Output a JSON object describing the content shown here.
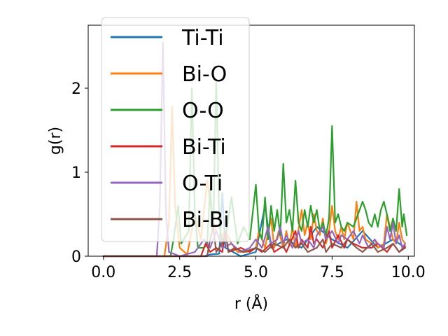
{
  "chart_data": {
    "type": "line",
    "title": "",
    "xlabel": "r (Å)",
    "ylabel": "g(r)",
    "xlim": [
      -0.5,
      10.2
    ],
    "ylim": [
      0,
      2.75
    ],
    "xticks": [
      0.0,
      2.5,
      5.0,
      7.5,
      10.0
    ],
    "xtick_labels": [
      "0.0",
      "2.5",
      "5.0",
      "7.5",
      "10.0"
    ],
    "yticks": [
      0,
      1,
      2
    ],
    "ytick_labels": [
      "0",
      "1",
      "2"
    ],
    "grid": false,
    "legend_position": "upper-left",
    "series": [
      {
        "name": "Ti-Ti",
        "color": "#1f77b4",
        "points": [
          [
            0,
            0
          ],
          [
            3.0,
            0
          ],
          [
            3.3,
            0
          ],
          [
            3.5,
            0.02
          ],
          [
            3.8,
            0.03
          ],
          [
            3.9,
            0.75
          ],
          [
            4.0,
            0.1
          ],
          [
            4.5,
            0
          ],
          [
            5.0,
            0.05
          ],
          [
            5.3,
            0.6
          ],
          [
            5.5,
            0.1
          ],
          [
            6.0,
            0.2
          ],
          [
            6.5,
            0.1
          ],
          [
            7.0,
            0.35
          ],
          [
            7.5,
            0.2
          ],
          [
            8.0,
            0.1
          ],
          [
            8.5,
            0.3
          ],
          [
            9.0,
            0.1
          ],
          [
            9.5,
            0.2
          ],
          [
            9.9,
            0.1
          ]
        ]
      },
      {
        "name": "Bi-O",
        "color": "#ff7f0e",
        "points": [
          [
            0,
            0
          ],
          [
            2.0,
            0
          ],
          [
            2.15,
            0.4
          ],
          [
            2.25,
            1.78
          ],
          [
            2.35,
            0.6
          ],
          [
            2.5,
            0.1
          ],
          [
            2.75,
            0.02
          ],
          [
            3.0,
            0.5
          ],
          [
            3.2,
            0.2
          ],
          [
            3.4,
            0.9
          ],
          [
            3.6,
            0.4
          ],
          [
            3.8,
            0.2
          ],
          [
            4.0,
            0.3
          ],
          [
            4.2,
            0.15
          ],
          [
            4.4,
            0.05
          ],
          [
            4.7,
            0.05
          ],
          [
            5.0,
            0.1
          ],
          [
            5.1,
            0.3
          ],
          [
            5.3,
            0.1
          ],
          [
            5.5,
            0.45
          ],
          [
            5.6,
            0.1
          ],
          [
            5.75,
            0.3
          ],
          [
            5.9,
            0.1
          ],
          [
            6.0,
            0.3
          ],
          [
            6.1,
            0.12
          ],
          [
            6.2,
            0.35
          ],
          [
            6.3,
            0.1
          ],
          [
            6.5,
            0.55
          ],
          [
            6.6,
            0.25
          ],
          [
            6.7,
            0.4
          ],
          [
            6.8,
            0.2
          ],
          [
            6.9,
            0.5
          ],
          [
            7.0,
            0.3
          ],
          [
            7.1,
            0.25
          ],
          [
            7.2,
            0.45
          ],
          [
            7.3,
            0.15
          ],
          [
            7.4,
            0.3
          ],
          [
            7.5,
            0.6
          ],
          [
            7.6,
            0.3
          ],
          [
            7.7,
            0.2
          ],
          [
            7.8,
            0.35
          ],
          [
            7.9,
            0.2
          ],
          [
            8.0,
            0.4
          ],
          [
            8.1,
            0.3
          ],
          [
            8.2,
            0.2
          ],
          [
            8.3,
            0.65
          ],
          [
            8.4,
            0.3
          ],
          [
            8.5,
            0.35
          ],
          [
            8.6,
            0.2
          ],
          [
            8.8,
            0.15
          ],
          [
            8.9,
            0.2
          ],
          [
            9.0,
            0.1
          ],
          [
            9.2,
            0.15
          ],
          [
            9.3,
            0.5
          ],
          [
            9.4,
            0.35
          ],
          [
            9.5,
            0.2
          ],
          [
            9.6,
            0.15
          ],
          [
            9.7,
            0.4
          ],
          [
            9.8,
            0.2
          ],
          [
            9.9,
            0.15
          ]
        ]
      },
      {
        "name": "O-O",
        "color": "#2ca02c",
        "points": [
          [
            0,
            0
          ],
          [
            2.0,
            0
          ],
          [
            2.2,
            0
          ],
          [
            2.3,
            0.2
          ],
          [
            2.45,
            0.6
          ],
          [
            2.55,
            0.15
          ],
          [
            2.8,
            0.3
          ],
          [
            2.9,
            2.0
          ],
          [
            3.0,
            0.5
          ],
          [
            3.1,
            0.1
          ],
          [
            3.3,
            0.1
          ],
          [
            3.4,
            0.15
          ],
          [
            3.5,
            0.8
          ],
          [
            3.6,
            0.3
          ],
          [
            3.7,
            2.1
          ],
          [
            3.8,
            0.4
          ],
          [
            3.9,
            0.15
          ],
          [
            4.0,
            0.2
          ],
          [
            4.2,
            0.7
          ],
          [
            4.4,
            0.15
          ],
          [
            4.6,
            0.35
          ],
          [
            4.8,
            0.2
          ],
          [
            5.0,
            0.85
          ],
          [
            5.1,
            0.3
          ],
          [
            5.2,
            0.2
          ],
          [
            5.3,
            0.7
          ],
          [
            5.4,
            0.2
          ],
          [
            5.5,
            0.6
          ],
          [
            5.6,
            0.3
          ],
          [
            5.7,
            0.55
          ],
          [
            5.8,
            0.25
          ],
          [
            5.9,
            1.1
          ],
          [
            6.0,
            0.4
          ],
          [
            6.1,
            0.55
          ],
          [
            6.2,
            0.3
          ],
          [
            6.3,
            0.9
          ],
          [
            6.4,
            0.4
          ],
          [
            6.5,
            0.3
          ],
          [
            6.6,
            0.55
          ],
          [
            6.7,
            0.35
          ],
          [
            6.8,
            0.6
          ],
          [
            6.9,
            0.4
          ],
          [
            7.0,
            0.55
          ],
          [
            7.1,
            0.3
          ],
          [
            7.2,
            0.4
          ],
          [
            7.3,
            0.25
          ],
          [
            7.4,
            0.45
          ],
          [
            7.5,
            1.55
          ],
          [
            7.6,
            0.4
          ],
          [
            7.7,
            0.5
          ],
          [
            7.8,
            0.35
          ],
          [
            7.9,
            0.3
          ],
          [
            8.0,
            0.4
          ],
          [
            8.2,
            0.35
          ],
          [
            8.3,
            0.45
          ],
          [
            8.5,
            0.65
          ],
          [
            8.6,
            0.55
          ],
          [
            8.7,
            0.4
          ],
          [
            8.8,
            0.35
          ],
          [
            8.9,
            0.5
          ],
          [
            9.0,
            0.35
          ],
          [
            9.1,
            0.55
          ],
          [
            9.2,
            0.65
          ],
          [
            9.3,
            0.5
          ],
          [
            9.4,
            0.3
          ],
          [
            9.5,
            0.45
          ],
          [
            9.6,
            0.3
          ],
          [
            9.7,
            0.8
          ],
          [
            9.8,
            0.35
          ],
          [
            9.85,
            0.5
          ],
          [
            9.95,
            0.25
          ]
        ]
      },
      {
        "name": "Bi-Ti",
        "color": "#d62728",
        "points": [
          [
            0,
            0
          ],
          [
            3.2,
            0
          ],
          [
            3.3,
            0.1
          ],
          [
            3.35,
            0.15
          ],
          [
            3.5,
            0.05
          ],
          [
            3.7,
            0.1
          ],
          [
            3.9,
            0.05
          ],
          [
            4.0,
            0.3
          ],
          [
            4.1,
            0.05
          ],
          [
            4.5,
            0.1
          ],
          [
            4.8,
            0.05
          ],
          [
            5.0,
            0.1
          ],
          [
            5.2,
            0.05
          ],
          [
            5.5,
            0.15
          ],
          [
            5.6,
            0.05
          ],
          [
            5.9,
            0.12
          ],
          [
            6.0,
            0.05
          ],
          [
            6.3,
            0.3
          ],
          [
            6.4,
            0.1
          ],
          [
            6.5,
            0.2
          ],
          [
            6.7,
            0.1
          ],
          [
            6.8,
            0.35
          ],
          [
            6.9,
            0.15
          ],
          [
            7.0,
            0.2
          ],
          [
            7.2,
            0.1
          ],
          [
            7.4,
            0.3
          ],
          [
            7.5,
            0.1
          ],
          [
            7.7,
            0.25
          ],
          [
            7.9,
            0.1
          ],
          [
            8.0,
            0.2
          ],
          [
            8.2,
            0.15
          ],
          [
            8.5,
            0.1
          ],
          [
            8.8,
            0.1
          ],
          [
            9.0,
            0.15
          ],
          [
            9.3,
            0.05
          ],
          [
            9.5,
            0.15
          ],
          [
            9.7,
            0.05
          ],
          [
            9.9,
            0.12
          ]
        ]
      },
      {
        "name": "O-Ti",
        "color": "#9467bd",
        "points": [
          [
            0,
            0
          ],
          [
            1.75,
            0
          ],
          [
            1.85,
            0.6
          ],
          [
            1.95,
            2.55
          ],
          [
            2.05,
            0.5
          ],
          [
            2.15,
            0.05
          ],
          [
            2.5,
            0
          ],
          [
            3.0,
            0.05
          ],
          [
            3.3,
            0.2
          ],
          [
            3.5,
            0.1
          ],
          [
            3.7,
            0.3
          ],
          [
            3.9,
            0.1
          ],
          [
            4.2,
            0.15
          ],
          [
            4.5,
            0.05
          ],
          [
            4.8,
            0.1
          ],
          [
            5.0,
            0.2
          ],
          [
            5.2,
            0.1
          ],
          [
            5.4,
            0.35
          ],
          [
            5.5,
            0.15
          ],
          [
            5.7,
            0.2
          ],
          [
            5.8,
            0.35
          ],
          [
            5.9,
            0.15
          ],
          [
            6.0,
            0.25
          ],
          [
            6.2,
            0.1
          ],
          [
            6.4,
            0.3
          ],
          [
            6.5,
            0.15
          ],
          [
            6.7,
            0.2
          ],
          [
            6.9,
            0.1
          ],
          [
            7.0,
            0.25
          ],
          [
            7.2,
            0.35
          ],
          [
            7.3,
            0.2
          ],
          [
            7.5,
            0.3
          ],
          [
            7.7,
            0.15
          ],
          [
            7.8,
            0.25
          ],
          [
            8.0,
            0.2
          ],
          [
            8.2,
            0.3
          ],
          [
            8.4,
            0.15
          ],
          [
            8.5,
            0.25
          ],
          [
            8.7,
            0.1
          ],
          [
            8.9,
            0.2
          ],
          [
            9.0,
            0.15
          ],
          [
            9.2,
            0.1
          ],
          [
            9.3,
            0.35
          ],
          [
            9.4,
            0.2
          ],
          [
            9.5,
            0.4
          ],
          [
            9.6,
            0.15
          ],
          [
            9.7,
            0.25
          ],
          [
            9.8,
            0.1
          ],
          [
            9.9,
            0.15
          ]
        ]
      },
      {
        "name": "Bi-Bi",
        "color": "#8c564b",
        "points": [
          [
            0,
            0
          ],
          [
            3.4,
            0
          ],
          [
            3.5,
            0.2
          ],
          [
            3.6,
            0.35
          ],
          [
            3.7,
            0.05
          ],
          [
            3.9,
            0.15
          ],
          [
            4.0,
            0.3
          ],
          [
            4.1,
            0.05
          ],
          [
            4.3,
            0.1
          ],
          [
            4.6,
            0.05
          ],
          [
            5.0,
            0.1
          ],
          [
            5.3,
            0.05
          ],
          [
            5.6,
            0.15
          ],
          [
            5.9,
            0.1
          ],
          [
            6.1,
            0.2
          ],
          [
            6.3,
            0.1
          ],
          [
            6.5,
            0.15
          ],
          [
            6.7,
            0.05
          ],
          [
            7.0,
            0.1
          ],
          [
            7.2,
            0.2
          ],
          [
            7.3,
            0.05
          ],
          [
            7.5,
            0.15
          ],
          [
            7.8,
            0.1
          ],
          [
            8.0,
            0.2
          ],
          [
            8.3,
            0.1
          ],
          [
            8.5,
            0.05
          ],
          [
            8.8,
            0.15
          ],
          [
            9.0,
            0.05
          ],
          [
            9.3,
            0.1
          ],
          [
            9.5,
            0.15
          ],
          [
            9.7,
            0.05
          ],
          [
            9.9,
            0.1
          ]
        ]
      }
    ]
  }
}
